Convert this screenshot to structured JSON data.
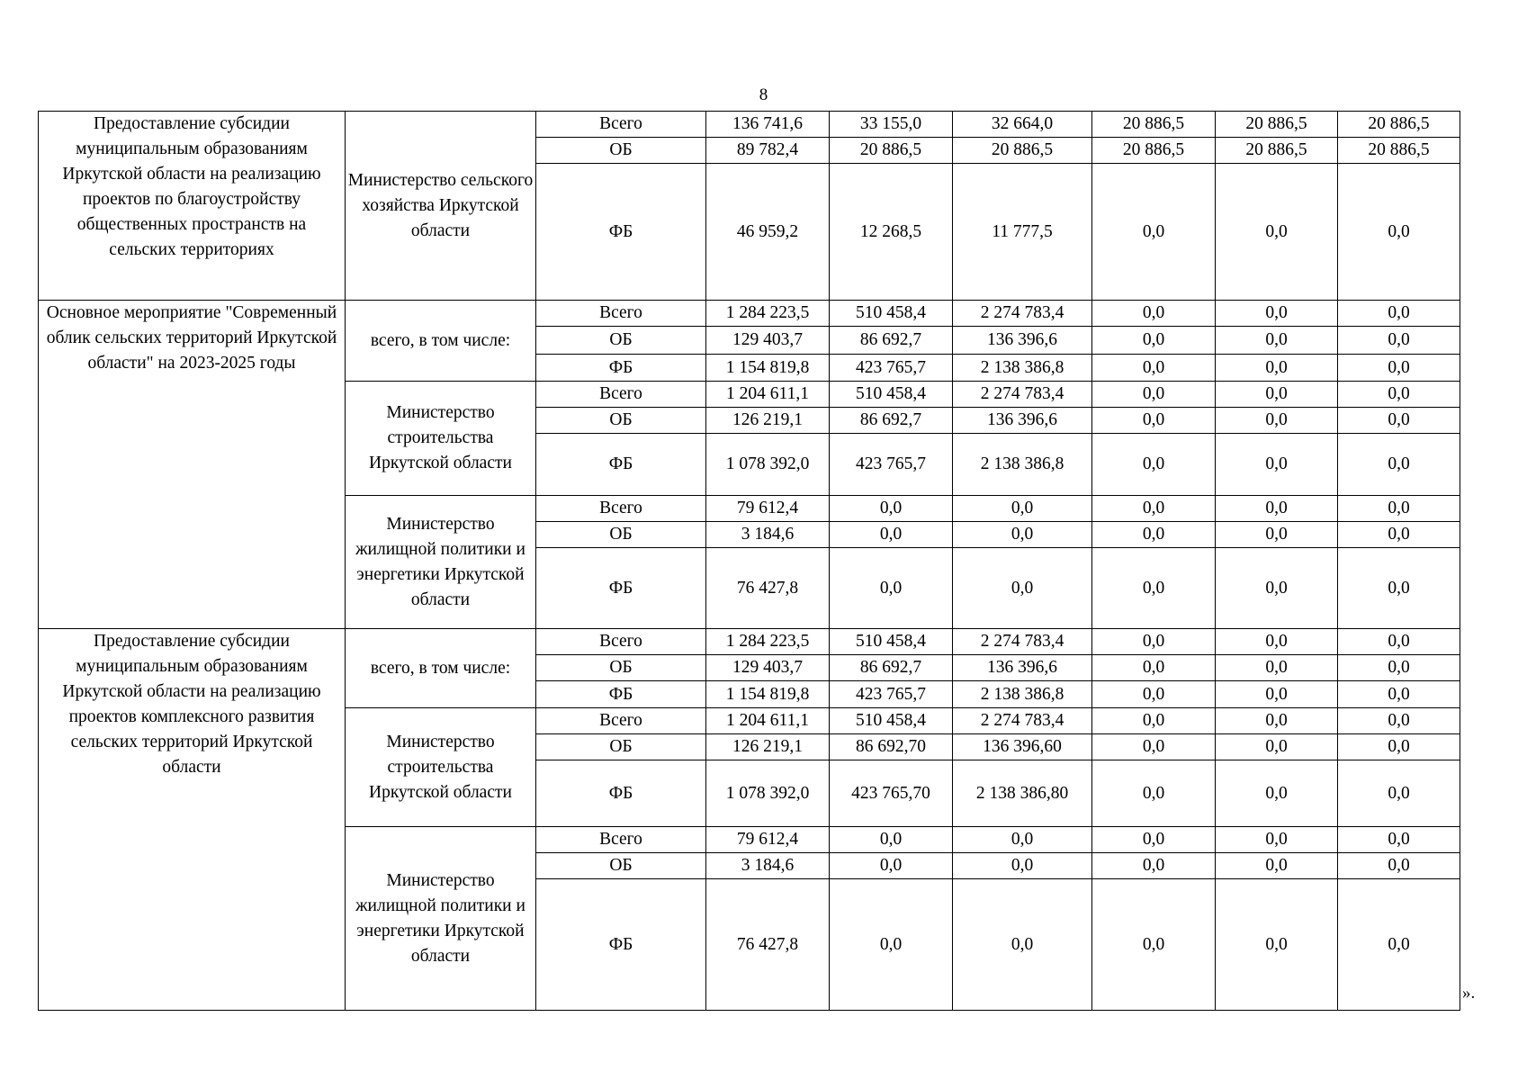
{
  "page_number": "8",
  "closing_mark": "».",
  "sections": [
    {
      "title": "Предоставление субсидии муниципальным образованиям Иркутской области на реализацию проектов по благоустройству общественных пространств на сельских территориях",
      "groups": [
        {
          "responsible": "Министерство сельского хозяйства Иркутской области",
          "rows": [
            {
              "type": "Всего",
              "values": [
                "136 741,6",
                "33 155,0",
                "32 664,0",
                "20 886,5",
                "20 886,5",
                "20 886,5"
              ]
            },
            {
              "type": "ОБ",
              "values": [
                "89 782,4",
                "20 886,5",
                "20 886,5",
                "20 886,5",
                "20 886,5",
                "20 886,5"
              ]
            },
            {
              "type": "ФБ",
              "values": [
                "46 959,2",
                "12 268,5",
                "11 777,5",
                "0,0",
                "0,0",
                "0,0"
              ]
            }
          ]
        }
      ]
    },
    {
      "title": "Основное мероприятие \"Современный облик сельских территорий Иркутской области\" на 2023-2025 годы",
      "groups": [
        {
          "responsible": "всего, в том числе:",
          "rows": [
            {
              "type": "Всего",
              "values": [
                "1 284 223,5",
                "510 458,4",
                "2 274 783,4",
                "0,0",
                "0,0",
                "0,0"
              ]
            },
            {
              "type": "ОБ",
              "values": [
                "129 403,7",
                "86 692,7",
                "136 396,6",
                "0,0",
                "0,0",
                "0,0"
              ]
            },
            {
              "type": "ФБ",
              "values": [
                "1 154 819,8",
                "423 765,7",
                "2 138 386,8",
                "0,0",
                "0,0",
                "0,0"
              ]
            }
          ]
        },
        {
          "responsible": "Министерство строительства Иркутской области",
          "rows": [
            {
              "type": "Всего",
              "values": [
                "1 204 611,1",
                "510 458,4",
                "2 274 783,4",
                "0,0",
                "0,0",
                "0,0"
              ]
            },
            {
              "type": "ОБ",
              "values": [
                "126 219,1",
                "86 692,7",
                "136 396,6",
                "0,0",
                "0,0",
                "0,0"
              ]
            },
            {
              "type": "ФБ",
              "values": [
                "1 078 392,0",
                "423 765,7",
                "2 138 386,8",
                "0,0",
                "0,0",
                "0,0"
              ]
            }
          ]
        },
        {
          "responsible": "Министерство жилищной политики и энергетики Иркутской области",
          "rows": [
            {
              "type": "Всего",
              "values": [
                "79 612,4",
                "0,0",
                "0,0",
                "0,0",
                "0,0",
                "0,0"
              ]
            },
            {
              "type": "ОБ",
              "values": [
                "3 184,6",
                "0,0",
                "0,0",
                "0,0",
                "0,0",
                "0,0"
              ]
            },
            {
              "type": "ФБ",
              "values": [
                "76 427,8",
                "0,0",
                "0,0",
                "0,0",
                "0,0",
                "0,0"
              ]
            }
          ]
        }
      ]
    },
    {
      "title": "Предоставление субсидии муниципальным образованиям Иркутской области на реализацию проектов комплексного развития сельских территорий Иркутской области",
      "groups": [
        {
          "responsible": "всего, в том числе:",
          "rows": [
            {
              "type": "Всего",
              "values": [
                "1 284 223,5",
                "510 458,4",
                "2 274 783,4",
                "0,0",
                "0,0",
                "0,0"
              ]
            },
            {
              "type": "ОБ",
              "values": [
                "129 403,7",
                "86 692,7",
                "136 396,6",
                "0,0",
                "0,0",
                "0,0"
              ]
            },
            {
              "type": "ФБ",
              "values": [
                "1 154 819,8",
                "423 765,7",
                "2 138 386,8",
                "0,0",
                "0,0",
                "0,0"
              ]
            }
          ]
        },
        {
          "responsible": "Министерство строительства Иркутской области",
          "rows": [
            {
              "type": "Всего",
              "values": [
                "1 204 611,1",
                "510 458,4",
                "2 274 783,4",
                "0,0",
                "0,0",
                "0,0"
              ]
            },
            {
              "type": "ОБ",
              "values": [
                "126 219,1",
                "86 692,70",
                "136 396,60",
                "0,0",
                "0,0",
                "0,0"
              ]
            },
            {
              "type": "ФБ",
              "values": [
                "1 078 392,0",
                "423 765,70",
                "2 138 386,80",
                "0,0",
                "0,0",
                "0,0"
              ]
            }
          ]
        },
        {
          "responsible": "Министерство жилищной политики и энергетики Иркутской области",
          "rows": [
            {
              "type": "Всего",
              "values": [
                "79 612,4",
                "0,0",
                "0,0",
                "0,0",
                "0,0",
                "0,0"
              ]
            },
            {
              "type": "ОБ",
              "values": [
                "3 184,6",
                "0,0",
                "0,0",
                "0,0",
                "0,0",
                "0,0"
              ]
            },
            {
              "type": "ФБ",
              "values": [
                "76 427,8",
                "0,0",
                "0,0",
                "0,0",
                "0,0",
                "0,0"
              ]
            }
          ]
        }
      ]
    }
  ]
}
